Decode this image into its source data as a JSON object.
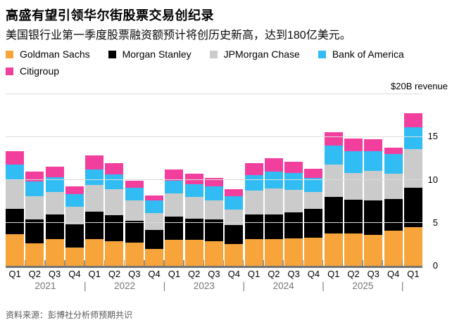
{
  "header": {
    "title": "高盛有望引领华尔街股票交易创纪录",
    "subtitle": "美国银行业第一季度股票融资额预计将创历史新高，达到180亿美元。"
  },
  "legend": [
    {
      "label": "Goldman Sachs",
      "color": "#f7a43a"
    },
    {
      "label": "Morgan Stanley",
      "color": "#000000"
    },
    {
      "label": "JPMorgan Chase",
      "color": "#cbcbcb"
    },
    {
      "label": "Bank of America",
      "color": "#31bdf4"
    },
    {
      "label": "Citigroup",
      "color": "#f23e9d"
    }
  ],
  "chart_data": {
    "type": "bar",
    "subtype": "stacked",
    "unit_label": "$20B revenue",
    "ylim": [
      0,
      20
    ],
    "y_gridlines": [
      0,
      5,
      10,
      15,
      20
    ],
    "y_ticks": [
      0,
      5,
      10,
      15
    ],
    "grid": "horizontal",
    "legend_position": "top",
    "categories": [
      "Q1",
      "Q2",
      "Q3",
      "Q4",
      "Q1",
      "Q2",
      "Q3",
      "Q4",
      "Q1",
      "Q2",
      "Q3",
      "Q4",
      "Q1",
      "Q2",
      "Q3",
      "Q4",
      "Q1",
      "Q2",
      "Q3",
      "Q4",
      "Q1"
    ],
    "year_groups": [
      {
        "label": "2021",
        "span": 4
      },
      {
        "label": "2022",
        "span": 4
      },
      {
        "label": "2023",
        "span": 4
      },
      {
        "label": "2024",
        "span": 4
      },
      {
        "label": "2025",
        "span": 4
      },
      {
        "label": "",
        "span": 1
      }
    ],
    "series": [
      {
        "name": "Goldman Sachs",
        "color": "#f7a43a",
        "values": [
          3.7,
          2.6,
          3.1,
          2.1,
          3.1,
          2.9,
          2.7,
          2.0,
          3.0,
          3.0,
          2.9,
          2.5,
          3.1,
          3.1,
          3.2,
          3.3,
          3.8,
          3.8,
          3.6,
          4.1,
          4.5
        ]
      },
      {
        "name": "Morgan Stanley",
        "color": "#000000",
        "values": [
          2.9,
          2.8,
          2.9,
          2.7,
          3.2,
          3.0,
          2.5,
          2.2,
          2.7,
          2.5,
          2.5,
          2.2,
          2.9,
          2.9,
          3.0,
          3.3,
          4.2,
          3.9,
          4.0,
          3.7,
          4.6
        ]
      },
      {
        "name": "JPMorgan Chase",
        "color": "#cbcbcb",
        "values": [
          3.4,
          2.7,
          2.6,
          2.1,
          3.1,
          3.0,
          2.4,
          1.9,
          2.7,
          2.5,
          2.2,
          1.8,
          2.7,
          3.0,
          2.6,
          2.0,
          3.8,
          3.1,
          3.4,
          2.9,
          4.5
        ]
      },
      {
        "name": "Bank of America",
        "color": "#31bdf4",
        "values": [
          1.8,
          1.7,
          1.7,
          1.4,
          1.8,
          1.7,
          1.5,
          1.5,
          1.5,
          1.5,
          1.6,
          1.6,
          1.8,
          1.9,
          2.0,
          1.6,
          2.2,
          2.5,
          2.3,
          2.3,
          2.5
        ]
      },
      {
        "name": "Citigroup",
        "color": "#f23e9d",
        "values": [
          1.5,
          1.1,
          1.2,
          0.9,
          1.6,
          1.3,
          0.8,
          0.6,
          1.3,
          1.2,
          1.0,
          0.8,
          1.4,
          1.6,
          1.3,
          1.1,
          1.5,
          1.5,
          1.4,
          0.7,
          1.6
        ]
      }
    ]
  },
  "footer": {
    "source": "资料来源：彭博社分析师预期共识"
  }
}
